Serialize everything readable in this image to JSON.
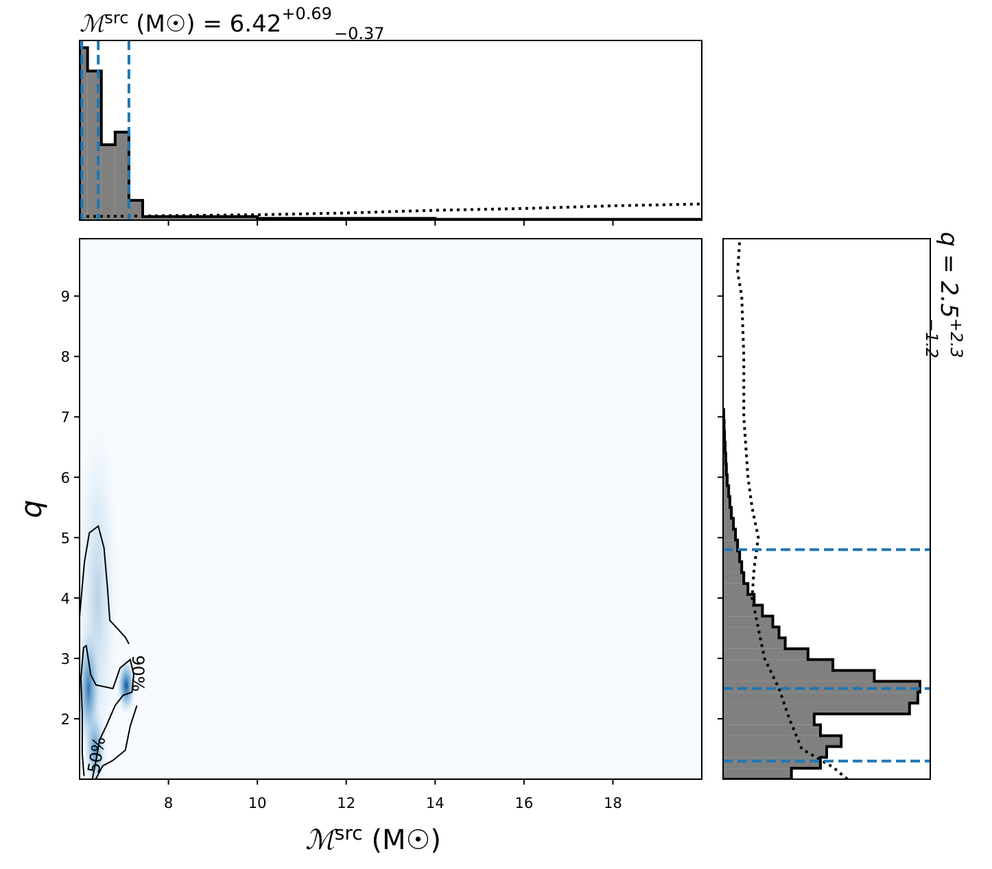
{
  "chart_data": {
    "type": "corner",
    "title": {
      "symbol": "ℳ",
      "superscript": "src",
      "unit": " (M☉) = 6.42",
      "upper": "+0.69",
      "lower": "−0.37"
    },
    "side_title": {
      "text": "q = 2.5",
      "upper": "+2.3",
      "lower": "−1.2"
    },
    "xlabel": {
      "symbol": "ℳ",
      "superscript": "src",
      "unit": " (M☉)"
    },
    "ylabel": "q",
    "xlim": [
      6.0,
      20.0
    ],
    "ylim": [
      1.0,
      9.95
    ],
    "xticks": [
      8,
      10,
      12,
      14,
      16,
      18
    ],
    "yticks": [
      2,
      3,
      4,
      5,
      6,
      7,
      8,
      9
    ],
    "x_quantiles": [
      6.05,
      6.42,
      7.11
    ],
    "y_quantiles": [
      1.3,
      2.5,
      4.8
    ],
    "quantile_color": "#1f77b4",
    "hist_color": "#808080",
    "x_hist": {
      "bins": [
        6.0,
        6.18,
        6.49,
        6.8,
        7.11,
        7.42,
        10,
        14,
        20
      ],
      "counts": [
        0.96,
        0.83,
        0.42,
        0.49,
        0.11,
        0.02,
        0.01,
        0.005
      ],
      "lim": [
        0,
        1
      ]
    },
    "x_prior": {
      "x": [
        6,
        8,
        10,
        12,
        14,
        16,
        18,
        20
      ],
      "values": [
        0.02,
        0.025,
        0.03,
        0.04,
        0.055,
        0.065,
        0.08,
        0.09
      ]
    },
    "y_hist": {
      "bins": [
        1.0,
        1.18,
        1.36,
        1.54,
        1.72,
        1.9,
        2.08,
        2.26,
        2.44,
        2.62,
        2.8,
        2.98,
        3.16,
        3.34,
        3.52,
        3.7,
        3.88,
        4.06,
        4.24,
        4.42,
        4.6,
        4.78,
        4.96,
        5.14,
        5.32,
        5.5,
        5.68,
        5.86,
        6.04,
        6.22,
        6.4,
        6.58,
        6.76,
        6.94,
        7.12
      ],
      "counts": [
        0.33,
        0.47,
        0.5,
        0.57,
        0.47,
        0.44,
        0.9,
        0.94,
        0.95,
        0.73,
        0.53,
        0.41,
        0.3,
        0.27,
        0.24,
        0.19,
        0.15,
        0.12,
        0.1,
        0.09,
        0.08,
        0.07,
        0.06,
        0.05,
        0.04,
        0.033,
        0.027,
        0.02,
        0.016,
        0.013,
        0.01,
        0.007,
        0.005,
        0.003
      ],
      "lim": [
        0,
        1
      ]
    },
    "y_prior": {
      "y": [
        1.0,
        1.2,
        1.5,
        2.0,
        2.5,
        3.0,
        3.5,
        4.0,
        4.5,
        5.0,
        5.5,
        6.0,
        7.0,
        8.0,
        9.0,
        9.4,
        9.9
      ],
      "values": [
        0.6,
        0.53,
        0.38,
        0.32,
        0.27,
        0.2,
        0.17,
        0.14,
        0.15,
        0.17,
        0.14,
        0.12,
        0.1,
        0.1,
        0.09,
        0.07,
        0.08
      ]
    },
    "density_peaks": [
      {
        "x": 6.4,
        "y": 4.0,
        "sx": 0.25,
        "sy": 1.6,
        "weight": 0.25
      },
      {
        "x": 6.2,
        "y": 2.5,
        "sx": 0.14,
        "sy": 0.55,
        "weight": 0.8
      },
      {
        "x": 6.35,
        "y": 1.5,
        "sx": 0.13,
        "sy": 0.35,
        "weight": 0.7
      },
      {
        "x": 7.05,
        "y": 2.55,
        "sx": 0.11,
        "sy": 0.25,
        "weight": 1.0
      }
    ],
    "contours": [
      {
        "label": "90%",
        "x": [
          6.0,
          6.11,
          6.22,
          6.42,
          6.55,
          6.63,
          6.68,
          7.03,
          7.11
        ],
        "y": [
          3.69,
          4.6,
          5.08,
          5.19,
          4.83,
          4.15,
          3.63,
          3.35,
          3.24
        ]
      },
      {
        "label": null,
        "x": [
          7.29,
          7.14,
          7.03,
          6.75,
          6.52,
          6.37
        ],
        "y": [
          2.22,
          1.88,
          1.48,
          1.31,
          1.22,
          1.01
        ]
      },
      {
        "label": "50%",
        "x": [
          6.29,
          6.37,
          6.45,
          6.6,
          6.8,
          6.98,
          7.18,
          7.22,
          7.14,
          6.91,
          6.75,
          6.37,
          6.25,
          6.15,
          6.09,
          6.03,
          6.06,
          6.06,
          6.1
        ],
        "y": [
          1.01,
          1.31,
          1.65,
          1.88,
          2.22,
          2.39,
          2.44,
          2.73,
          2.98,
          2.84,
          2.5,
          2.56,
          2.73,
          3.21,
          3.18,
          2.67,
          2.1,
          1.42,
          1.05
        ]
      }
    ]
  }
}
